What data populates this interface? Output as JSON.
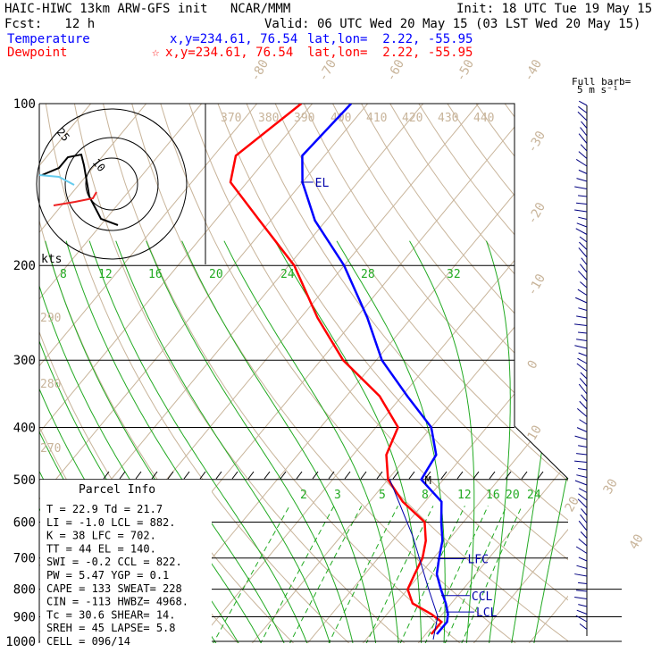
{
  "header": {
    "title": "HAIC-HIWC 13km ARW-GFS init   NCAR/MMM",
    "init": "Init: 18 UTC Tue 19 May 15",
    "fcst": "Fcst:   12 h",
    "valid": "Valid: 06 UTC Wed 20 May 15 (03 LST Wed 20 May 15)",
    "temperature_label": "Temperature",
    "temperature_xy": "x,y=234.61, 76.54",
    "temperature_latlon": "lat,lon=  2.22, -55.95",
    "dewpoint_label": "Dewpoint",
    "dewpoint_xy": "x,y=234.61, 76.54",
    "dewpoint_latlon": "lat,lon=  2.22, -55.95",
    "dewpoint_marker": "☆",
    "temperature_color": "#0000ff",
    "dewpoint_color": "#ff0000"
  },
  "barb_legend": {
    "line1": "Full barb=",
    "line2": "5 m s⁻¹"
  },
  "hodograph": {
    "kts_label": "kts",
    "ring_labels": [
      "25",
      "10"
    ]
  },
  "parcel_info": {
    "title": "Parcel Info",
    "rows": [
      "T   =   22.9  Td =  21.7",
      "LI  =   -1.0  LCL =  882.",
      "K   =     38  LFC =  702.",
      "TT  =     44  EL  =  140.",
      "SWI =   -0.2  CCL =  822.",
      "PW  =   5.47  YGP =   0.1",
      "CAPE =   133  SWEAT=  228",
      "CIN  =  -113  HWBZ= 4968.",
      "Tc  =   30.6  SHEAR=  14.",
      "SREH =    45  LAPSE=  5.8",
      "CELL = 096/14"
    ]
  },
  "chart_data": {
    "type": "line",
    "chart_kind": "skew-T log-p sounding",
    "y_axis": {
      "label": "pressure (hPa)",
      "ticks": [
        "100",
        "200",
        "300",
        "400",
        "500",
        "600",
        "700",
        "800",
        "900",
        "1000"
      ],
      "scale": "log",
      "inverted": true
    },
    "isotherm_labels": [
      "-80",
      "-70",
      "-60",
      "-50",
      "-40",
      "-30",
      "-20",
      "-10",
      "0",
      "10",
      "20",
      "30",
      "40"
    ],
    "theta_labels": [
      "370",
      "380",
      "390",
      "400",
      "410",
      "420",
      "430",
      "440",
      "290",
      "280",
      "270"
    ],
    "theta_e_labels": [
      "8",
      "12",
      "16",
      "20",
      "24",
      "28",
      "32"
    ],
    "mixing_ratio_labels": [
      "2",
      "3",
      "5",
      "8",
      "12",
      "16",
      "20",
      "24"
    ],
    "levels": [
      {
        "label": "EL",
        "pressure": 140
      },
      {
        "label": "M",
        "pressure": 500
      },
      {
        "label": "LFC",
        "pressure": 702
      },
      {
        "label": "CCL",
        "pressure": 822
      },
      {
        "label": "LCL",
        "pressure": 882
      }
    ],
    "series": [
      {
        "name": "Temperature",
        "color": "#0000ff",
        "points": [
          [
            100,
            -73
          ],
          [
            125,
            -74
          ],
          [
            140,
            -70
          ],
          [
            165,
            -62
          ],
          [
            200,
            -50
          ],
          [
            250,
            -38
          ],
          [
            300,
            -29
          ],
          [
            350,
            -19
          ],
          [
            400,
            -10
          ],
          [
            450,
            -5
          ],
          [
            500,
            -4
          ],
          [
            550,
            3
          ],
          [
            600,
            6
          ],
          [
            650,
            9
          ],
          [
            700,
            11
          ],
          [
            750,
            13
          ],
          [
            800,
            16
          ],
          [
            850,
            19
          ],
          [
            890,
            21
          ],
          [
            920,
            22
          ],
          [
            940,
            22
          ],
          [
            970,
            22
          ]
        ]
      },
      {
        "name": "Dewpoint",
        "color": "#ff0000",
        "points": [
          [
            100,
            -82
          ],
          [
            125,
            -86
          ],
          [
            140,
            -83
          ],
          [
            165,
            -72
          ],
          [
            200,
            -59
          ],
          [
            250,
            -47
          ],
          [
            300,
            -36
          ],
          [
            350,
            -24
          ],
          [
            400,
            -16
          ],
          [
            450,
            -14
          ],
          [
            500,
            -10
          ],
          [
            550,
            -4
          ],
          [
            600,
            3
          ],
          [
            650,
            6
          ],
          [
            700,
            8
          ],
          [
            750,
            9
          ],
          [
            800,
            10
          ],
          [
            850,
            13
          ],
          [
            890,
            18
          ],
          [
            920,
            21
          ],
          [
            940,
            21
          ],
          [
            970,
            21
          ]
        ]
      }
    ]
  }
}
